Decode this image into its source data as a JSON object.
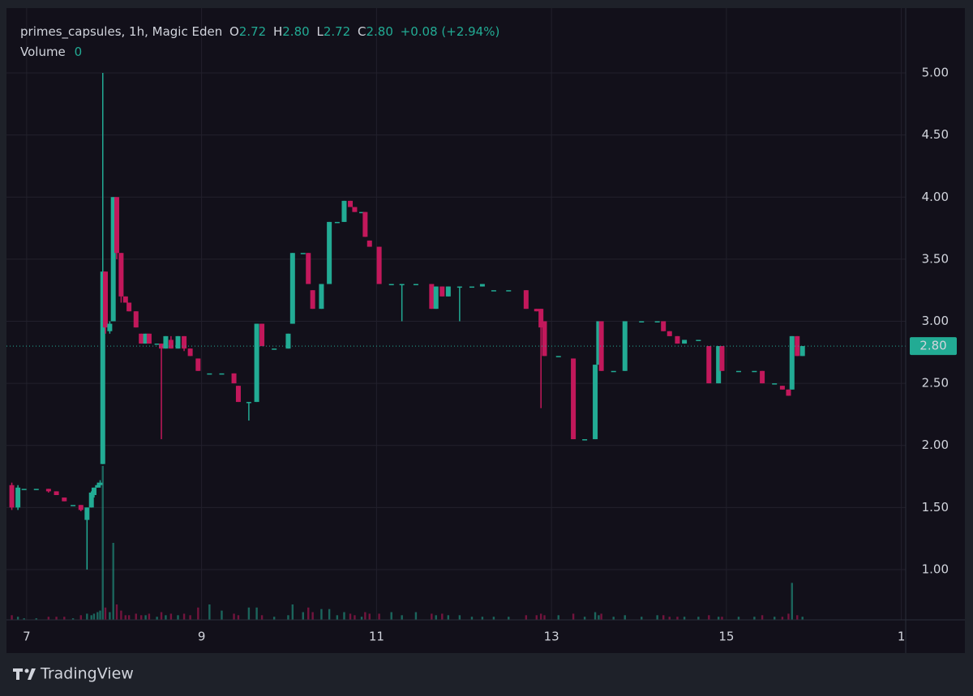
{
  "chart_data": {
    "type": "candlestick",
    "header": {
      "symbol": "primes_capsules, 1h, Magic Eden",
      "o_label": "O",
      "o": "2.72",
      "h_label": "H",
      "h": "2.80",
      "l_label": "L",
      "l": "2.72",
      "c_label": "C",
      "c": "2.80",
      "change": "+0.08 (+2.94%)",
      "volume_label": "Volume",
      "volume": "0"
    },
    "x": [
      6.83,
      6.9,
      6.97,
      7.11,
      7.25,
      7.34,
      7.43,
      7.53,
      7.62,
      7.69,
      7.74,
      7.77,
      7.81,
      7.84,
      7.87,
      7.9,
      7.95,
      7.99,
      8.03,
      8.08,
      8.13,
      8.17,
      8.25,
      8.31,
      8.36,
      8.4,
      8.49,
      8.54,
      8.59,
      8.65,
      8.73,
      8.8,
      8.87,
      8.96,
      9.09,
      9.23,
      9.37,
      9.42,
      9.54,
      9.63,
      9.69,
      9.83,
      9.99,
      10.04,
      10.16,
      10.22,
      10.27,
      10.37,
      10.46,
      10.55,
      10.63,
      10.7,
      10.75,
      10.83,
      10.87,
      10.92,
      11.03,
      11.17,
      11.29,
      11.45,
      11.63,
      11.68,
      11.75,
      11.82,
      11.95,
      12.09,
      12.21,
      12.34,
      12.51,
      12.71,
      12.83,
      12.88,
      12.92,
      13.08,
      13.25,
      13.38,
      13.5,
      13.54,
      13.57,
      13.71,
      13.84,
      14.03,
      14.21,
      14.28,
      14.35,
      14.44,
      14.52,
      14.68,
      14.8,
      14.91,
      14.95,
      15.14,
      15.32,
      15.41,
      15.55,
      15.64,
      15.71,
      15.75,
      15.81,
      15.87
    ],
    "open": [
      1.68,
      1.5,
      1.65,
      1.65,
      1.65,
      1.63,
      1.58,
      1.52,
      1.52,
      1.4,
      1.5,
      1.6,
      1.66,
      1.68,
      1.85,
      3.4,
      2.92,
      3.0,
      4.0,
      3.55,
      3.2,
      3.15,
      3.08,
      2.9,
      2.82,
      2.9,
      2.82,
      2.82,
      2.78,
      2.85,
      2.78,
      2.88,
      2.78,
      2.7,
      2.58,
      2.58,
      2.58,
      2.48,
      2.35,
      2.35,
      2.98,
      2.78,
      2.78,
      2.98,
      3.55,
      3.55,
      3.25,
      3.1,
      3.3,
      3.8,
      3.8,
      3.97,
      3.92,
      3.88,
      3.88,
      3.65,
      3.6,
      3.3,
      3.3,
      3.3,
      3.3,
      3.1,
      3.28,
      3.2,
      3.28,
      3.28,
      3.28,
      3.25,
      3.25,
      3.25,
      3.1,
      3.1,
      3.0,
      2.72,
      2.7,
      2.05,
      2.05,
      2.65,
      3.0,
      2.6,
      2.6,
      3.0,
      3.0,
      3.0,
      2.92,
      2.88,
      2.82,
      2.85,
      2.8,
      2.5,
      2.8,
      2.6,
      2.6,
      2.6,
      2.5,
      2.48,
      2.45,
      2.45,
      2.88,
      2.72
    ],
    "high": [
      1.7,
      1.68,
      1.65,
      1.65,
      1.65,
      1.63,
      1.58,
      1.52,
      1.52,
      1.5,
      1.63,
      1.66,
      1.7,
      1.72,
      5.0,
      3.4,
      3.0,
      4.0,
      4.0,
      3.55,
      3.2,
      3.15,
      3.08,
      2.9,
      2.9,
      2.9,
      2.82,
      2.82,
      2.88,
      2.88,
      2.88,
      2.88,
      2.78,
      2.7,
      2.58,
      2.58,
      2.58,
      2.48,
      2.35,
      2.98,
      2.98,
      2.78,
      2.9,
      3.55,
      3.55,
      3.55,
      3.25,
      3.3,
      3.8,
      3.8,
      3.97,
      3.97,
      3.92,
      3.88,
      3.88,
      3.65,
      3.6,
      3.3,
      3.3,
      3.3,
      3.3,
      3.28,
      3.28,
      3.28,
      3.28,
      3.28,
      3.3,
      3.25,
      3.25,
      3.25,
      3.1,
      3.1,
      3.0,
      2.72,
      2.7,
      2.05,
      2.65,
      3.0,
      3.0,
      2.6,
      3.0,
      3.0,
      3.0,
      3.0,
      2.92,
      2.88,
      2.85,
      2.85,
      2.8,
      2.8,
      2.8,
      2.6,
      2.6,
      2.6,
      2.5,
      2.48,
      2.45,
      2.88,
      2.88,
      2.8
    ],
    "low": [
      1.48,
      1.48,
      1.65,
      1.65,
      1.62,
      1.6,
      1.55,
      1.52,
      1.47,
      1.0,
      1.5,
      1.58,
      1.66,
      1.66,
      1.85,
      2.9,
      2.9,
      3.0,
      3.5,
      3.15,
      3.15,
      3.08,
      2.95,
      2.82,
      2.82,
      2.82,
      2.82,
      2.05,
      2.78,
      2.78,
      2.78,
      2.76,
      2.72,
      2.6,
      2.58,
      2.58,
      2.5,
      2.35,
      2.2,
      2.35,
      2.8,
      2.78,
      2.78,
      2.98,
      3.55,
      3.3,
      3.1,
      3.1,
      3.3,
      3.8,
      3.8,
      3.92,
      3.88,
      3.88,
      3.68,
      3.6,
      3.3,
      3.3,
      3.0,
      3.3,
      3.1,
      3.1,
      3.2,
      3.2,
      3.0,
      3.28,
      3.28,
      3.25,
      3.25,
      3.1,
      3.08,
      2.3,
      2.72,
      2.72,
      2.05,
      2.05,
      2.05,
      2.65,
      2.6,
      2.6,
      2.6,
      3.0,
      3.0,
      2.92,
      2.88,
      2.82,
      2.82,
      2.85,
      2.5,
      2.5,
      2.6,
      2.6,
      2.6,
      2.5,
      2.5,
      2.45,
      2.4,
      2.45,
      2.72,
      2.72
    ],
    "close": [
      1.5,
      1.66,
      1.65,
      1.65,
      1.63,
      1.6,
      1.55,
      1.52,
      1.48,
      1.5,
      1.62,
      1.66,
      1.68,
      1.7,
      3.4,
      2.95,
      2.98,
      4.0,
      3.55,
      3.2,
      3.15,
      3.08,
      2.95,
      2.82,
      2.9,
      2.82,
      2.82,
      2.78,
      2.88,
      2.78,
      2.88,
      2.78,
      2.72,
      2.6,
      2.58,
      2.58,
      2.5,
      2.35,
      2.35,
      2.98,
      2.8,
      2.78,
      2.9,
      3.55,
      3.55,
      3.3,
      3.1,
      3.3,
      3.8,
      3.8,
      3.97,
      3.92,
      3.88,
      3.88,
      3.68,
      3.6,
      3.3,
      3.3,
      3.3,
      3.3,
      3.1,
      3.28,
      3.2,
      3.28,
      3.28,
      3.28,
      3.3,
      3.25,
      3.25,
      3.1,
      3.08,
      2.95,
      2.72,
      2.72,
      2.05,
      2.05,
      2.65,
      3.0,
      2.6,
      2.6,
      3.0,
      3.0,
      3.0,
      2.92,
      2.88,
      2.82,
      2.85,
      2.85,
      2.5,
      2.8,
      2.6,
      2.6,
      2.6,
      2.5,
      2.5,
      2.45,
      2.4,
      2.88,
      2.72,
      2.8
    ],
    "volume": [
      3,
      2,
      1,
      1,
      2,
      2,
      2,
      1,
      3,
      4,
      3,
      4,
      5,
      6,
      100,
      8,
      5,
      50,
      10,
      6,
      3,
      3,
      4,
      3,
      3,
      4,
      2,
      5,
      3,
      4,
      3,
      4,
      3,
      8,
      10,
      6,
      4,
      3,
      8,
      8,
      3,
      2,
      3,
      10,
      5,
      8,
      5,
      7,
      7,
      3,
      5,
      4,
      3,
      2,
      5,
      4,
      4,
      5,
      3,
      5,
      4,
      3,
      4,
      3,
      3,
      2,
      2,
      2,
      2,
      3,
      3,
      4,
      3,
      3,
      4,
      2,
      5,
      3,
      4,
      2,
      3,
      2,
      3,
      3,
      2,
      2,
      2,
      2,
      3,
      2,
      2,
      2,
      2,
      3,
      2,
      2,
      4,
      24,
      3,
      2
    ],
    "last_price_label": "2.80",
    "up_color": "#22ab94",
    "down_color": "#c2185b",
    "xlim": [
      6.834,
      17.05
    ],
    "ylim": [
      0.595,
      5.457
    ],
    "xticks": [
      7,
      9,
      11,
      13,
      15,
      {
        "value": 17,
        "label": "1"
      }
    ],
    "yticks": [
      {
        "value": 1,
        "label": "1.00"
      },
      {
        "value": 1.5,
        "label": "1.50"
      },
      {
        "value": 2,
        "label": "2.00"
      },
      {
        "value": 2.5,
        "label": "2.50"
      },
      {
        "value": 3,
        "label": "3.00"
      },
      {
        "value": 3.5,
        "label": "3.50"
      },
      {
        "value": 4,
        "label": "4.00"
      },
      {
        "value": 4.5,
        "label": "4.50"
      },
      {
        "value": 5,
        "label": "5.00"
      }
    ],
    "grid": true,
    "brand": "TradingView"
  }
}
